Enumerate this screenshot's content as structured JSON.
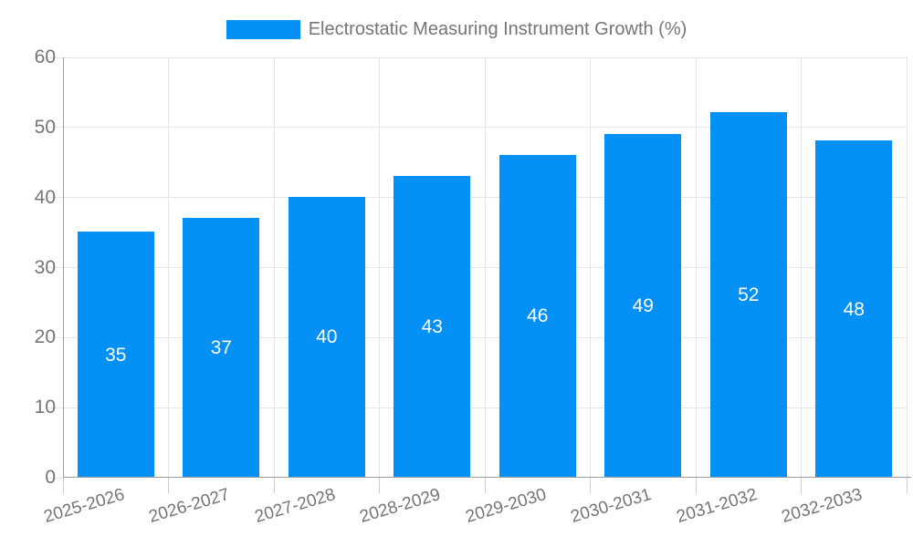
{
  "chart_data": {
    "type": "bar",
    "title": "Electrostatic Measuring Instrument Growth (%)",
    "legend": {
      "position": "top",
      "label": "Electrostatic Measuring Instrument Growth (%)"
    },
    "categories": [
      "2025-2026",
      "2026-2027",
      "2027-2028",
      "2028-2029",
      "2029-2030",
      "2030-2031",
      "2031-2032",
      "2032-2033"
    ],
    "values": [
      35,
      37,
      40,
      43,
      46,
      49,
      52,
      48
    ],
    "data_labels_shown": true,
    "xlabel": "",
    "ylabel": "",
    "ylim": [
      0,
      60
    ],
    "yticks": [
      0,
      10,
      20,
      30,
      40,
      50,
      60
    ],
    "grid": true,
    "colors": {
      "bar": "#0590f5",
      "bar_label": "#ffffff",
      "axis_text": "#757575",
      "legend_text": "#757575",
      "gridline": "#e6e6e6",
      "axis_line": "#9e9e9e",
      "tick": "#cccccc",
      "background": "#ffffff"
    }
  }
}
